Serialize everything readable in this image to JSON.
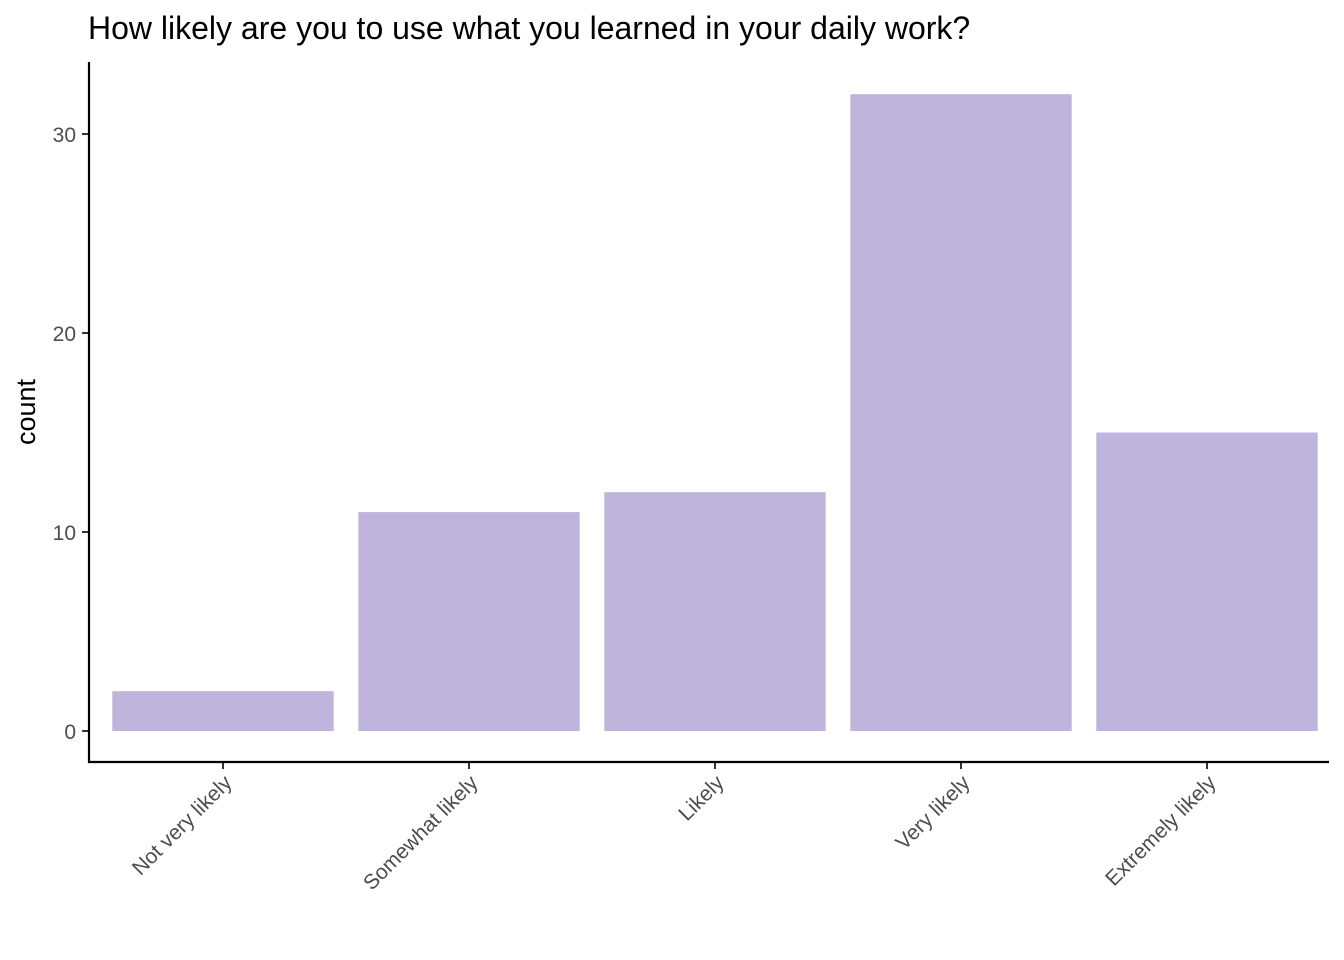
{
  "chart_data": {
    "type": "bar",
    "title": "How likely are you to use what you learned in your daily work?",
    "xlabel": "",
    "ylabel": "count",
    "categories": [
      "Not very likely",
      "Somewhat likely",
      "Likely",
      "Very likely",
      "Extremely likely"
    ],
    "values": [
      2,
      11,
      12,
      32,
      15
    ],
    "ylim": [
      0,
      33.6
    ],
    "yticks": [
      0,
      10,
      20,
      30
    ],
    "ytick_labels": [
      "0",
      "10",
      "20",
      "30"
    ],
    "bar_color": "#bfb4db",
    "axis_color": "#000000",
    "tick_label_color": "#4d4d4d",
    "grid": false,
    "legend": "none"
  }
}
